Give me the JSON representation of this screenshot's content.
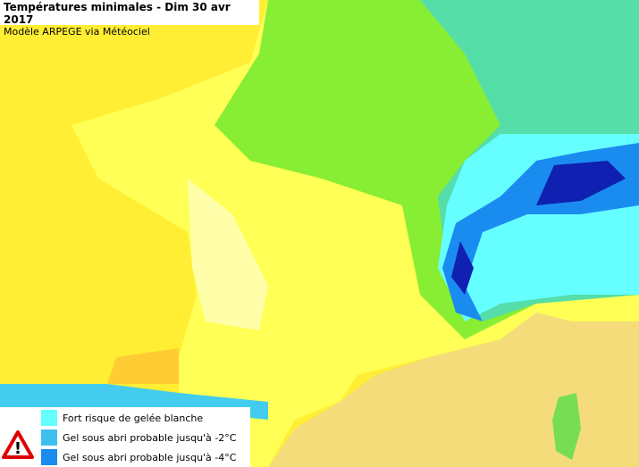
{
  "header": {
    "title": "Températures minimales - Dim 30 avr 2017",
    "subtitle": "Modèle ARPEGE via Météociel"
  },
  "legend": {
    "items": [
      {
        "label": "Fort risque de gelée blanche",
        "color": "#66ffff"
      },
      {
        "label": "Gel sous abri probable jusqu'à -2°C",
        "color": "#3cc0f0"
      },
      {
        "label": "Gel sous abri probable jusqu'à -4°C",
        "color": "#1a8cf0"
      }
    ]
  }
}
